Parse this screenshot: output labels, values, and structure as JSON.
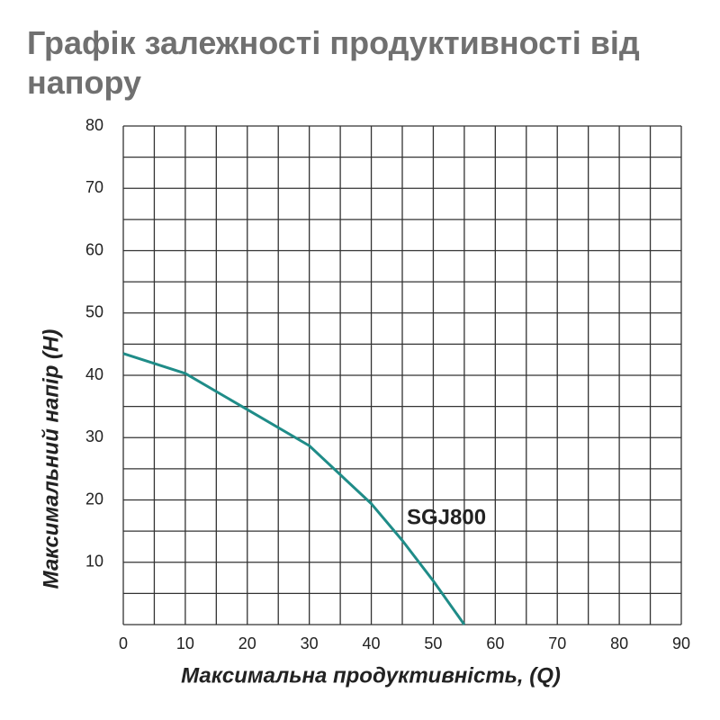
{
  "chart_data": {
    "type": "line",
    "title_lines": [
      "Графік залежності продуктивності від",
      "напору"
    ],
    "x_label": "Максимальна продуктивність, (Q)",
    "y_label": "Максимальний напір (Н)",
    "x": [
      0,
      10,
      20,
      30,
      40,
      45,
      50,
      55
    ],
    "series": [
      {
        "name": "SGJ800",
        "color": "#1f8c88",
        "values": [
          43.5,
          40.3,
          34.5,
          28.7,
          19.4,
          13.5,
          7,
          0
        ]
      }
    ],
    "xlim": [
      0,
      90
    ],
    "ylim": [
      0,
      80
    ],
    "xticks": [
      0,
      10,
      20,
      30,
      40,
      50,
      60,
      70,
      80,
      90
    ],
    "yticks": [
      10,
      20,
      30,
      40,
      50,
      60,
      70,
      80
    ],
    "grid": true,
    "grid_step": 5
  }
}
